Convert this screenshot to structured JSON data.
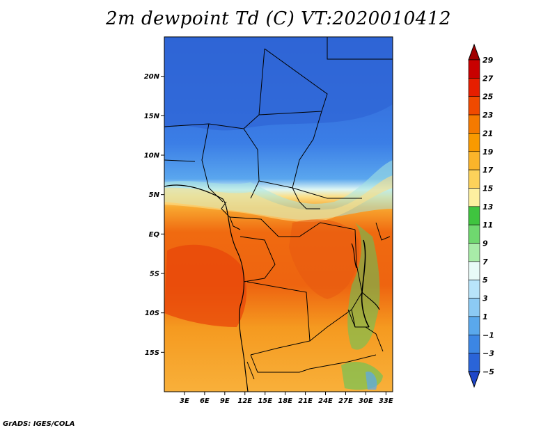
{
  "title": "2m dewpoint Td (C) VT:2020010412",
  "credit": "GrADS: IGES/COLA",
  "map": {
    "lon_range": [
      0,
      34
    ],
    "lat_range": [
      -20,
      25
    ],
    "lat_ticks": [
      {
        "value": 20,
        "label": "20N"
      },
      {
        "value": 15,
        "label": "15N"
      },
      {
        "value": 10,
        "label": "10N"
      },
      {
        "value": 5,
        "label": "5N"
      },
      {
        "value": 0,
        "label": "EQ"
      },
      {
        "value": -5,
        "label": "5S"
      },
      {
        "value": -10,
        "label": "10S"
      },
      {
        "value": -15,
        "label": "15S"
      }
    ],
    "lon_ticks": [
      {
        "value": 3,
        "label": "3E"
      },
      {
        "value": 6,
        "label": "6E"
      },
      {
        "value": 9,
        "label": "9E"
      },
      {
        "value": 12,
        "label": "12E"
      },
      {
        "value": 15,
        "label": "15E"
      },
      {
        "value": 18,
        "label": "18E"
      },
      {
        "value": 21,
        "label": "21E"
      },
      {
        "value": 24,
        "label": "24E"
      },
      {
        "value": 27,
        "label": "27E"
      },
      {
        "value": 30,
        "label": "30E"
      },
      {
        "value": 33,
        "label": "33E"
      }
    ]
  },
  "colorbar": {
    "levels": [
      "29",
      "27",
      "25",
      "23",
      "21",
      "19",
      "17",
      "15",
      "13",
      "11",
      "9",
      "7",
      "5",
      "3",
      "1",
      "−1",
      "−3",
      "−5"
    ],
    "colors": [
      "#a00000",
      "#c80000",
      "#e61e00",
      "#f04a00",
      "#f57a00",
      "#f99a00",
      "#fbb42a",
      "#fcd25a",
      "#fdf0a0",
      "#3fc43f",
      "#6fd86f",
      "#a8eca8",
      "#e8fbf8",
      "#b8e4fa",
      "#8ccaf4",
      "#5aa8ec",
      "#3c86e4",
      "#2a64d8",
      "#1e46c8"
    ]
  }
}
